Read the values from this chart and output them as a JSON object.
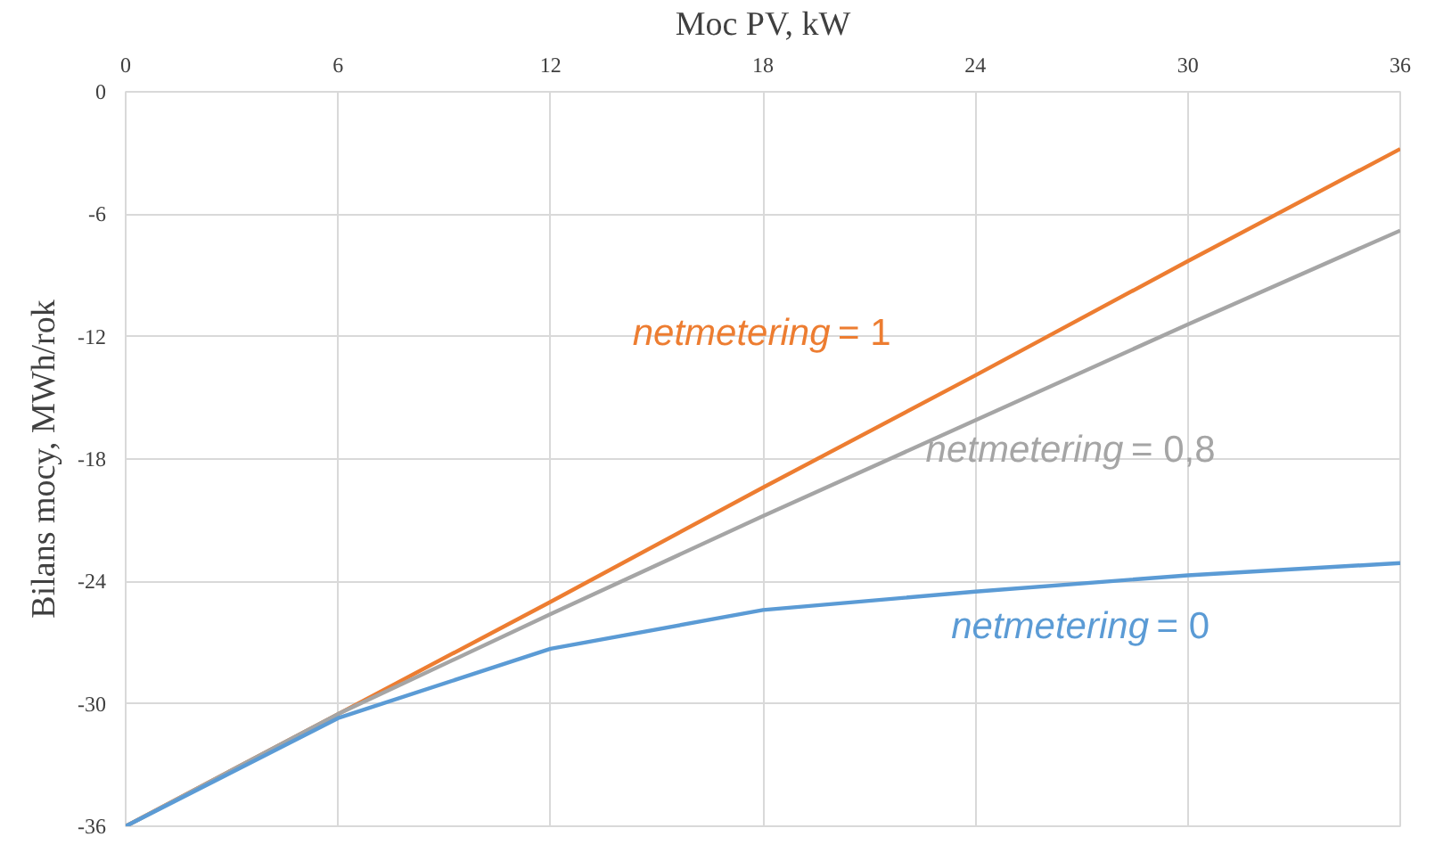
{
  "chart_data": {
    "type": "line",
    "xlabel": "Moc PV, kW",
    "ylabel": "Bilans mocy, MWh/rok",
    "x": [
      0,
      6,
      12,
      18,
      24,
      30,
      36
    ],
    "xlim": [
      0,
      36
    ],
    "xticks": [
      0,
      6,
      12,
      18,
      24,
      30,
      36
    ],
    "ylim": [
      -36,
      0
    ],
    "yticks": [
      0,
      -6,
      -12,
      -18,
      -24,
      -30,
      -36
    ],
    "grid": true,
    "marker": "none",
    "line_style": "solid",
    "series": [
      {
        "name": "netmetering = 1",
        "color": "#ed7d31",
        "values": [
          -36,
          -30.5,
          -25.0,
          -19.4,
          -13.9,
          -8.3,
          -2.8
        ]
      },
      {
        "name": "netmetering = 0,8",
        "color": "#a5a5a5",
        "values": [
          -36,
          -30.5,
          -25.6,
          -20.8,
          -16.1,
          -11.4,
          -6.8
        ]
      },
      {
        "name": "netmetering = 0",
        "color": "#5b9bd5",
        "values": [
          -36,
          -30.7,
          -27.3,
          -25.4,
          -24.5,
          -23.7,
          -23.1
        ]
      }
    ]
  }
}
